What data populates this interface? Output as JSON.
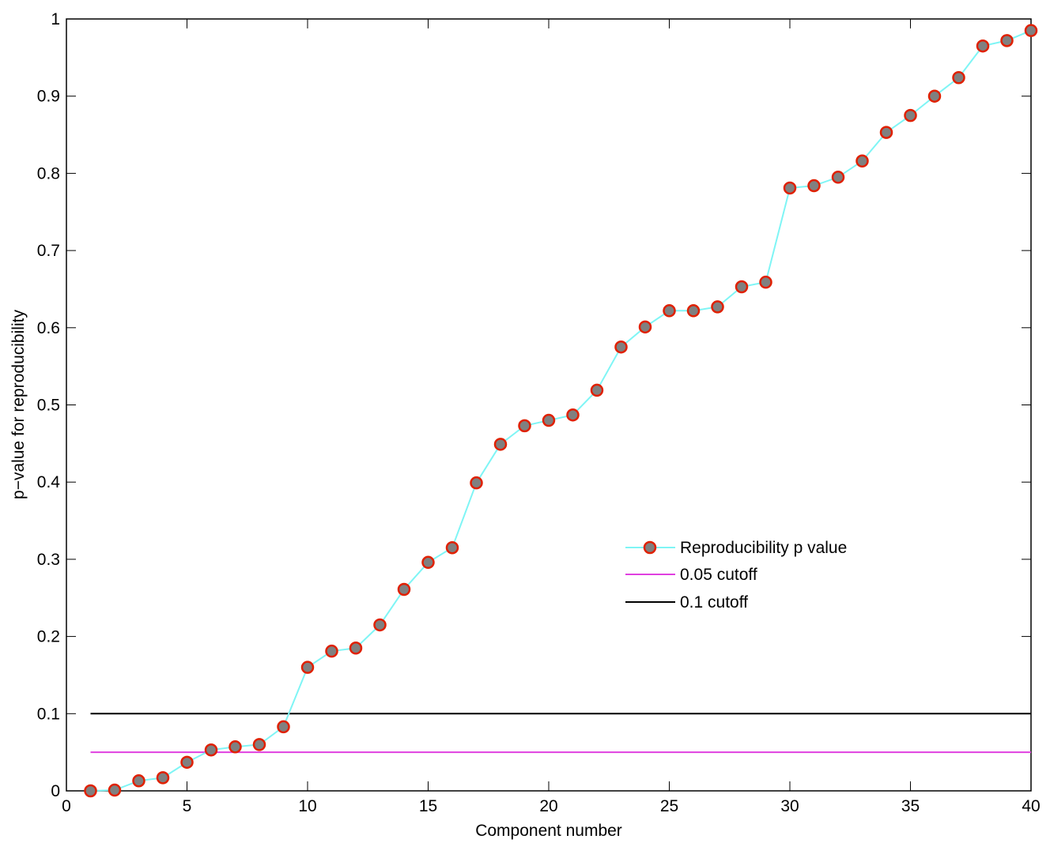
{
  "chart_data": {
    "type": "line",
    "title": "",
    "xlabel": "Component number",
    "ylabel": "p−value for reproducibility",
    "xlim": [
      0,
      40
    ],
    "ylim": [
      0,
      1
    ],
    "xticks": [
      0,
      5,
      10,
      15,
      20,
      25,
      30,
      35,
      40
    ],
    "yticks": [
      0,
      0.1,
      0.2,
      0.3,
      0.4,
      0.5,
      0.6,
      0.7,
      0.8,
      0.9,
      1
    ],
    "ytick_labels": [
      "0",
      "0.1",
      "0.2",
      "0.3",
      "0.4",
      "0.5",
      "0.6",
      "0.7",
      "0.8",
      "0.9",
      "1"
    ],
    "grid": false,
    "legend_position": "center-right",
    "series": [
      {
        "name": "Reproducibility p value",
        "style": "line-with-markers",
        "line_color": "#7ff5f5",
        "marker_face": "#808080",
        "marker_edge": "#e02000",
        "x": [
          1,
          2,
          3,
          4,
          5,
          6,
          7,
          8,
          9,
          10,
          11,
          12,
          13,
          14,
          15,
          16,
          17,
          18,
          19,
          20,
          21,
          22,
          23,
          24,
          25,
          26,
          27,
          28,
          29,
          30,
          31,
          32,
          33,
          34,
          35,
          36,
          37,
          38,
          39,
          40
        ],
        "values": [
          0.0,
          0.001,
          0.013,
          0.017,
          0.037,
          0.053,
          0.057,
          0.06,
          0.083,
          0.16,
          0.181,
          0.185,
          0.215,
          0.261,
          0.296,
          0.315,
          0.399,
          0.449,
          0.473,
          0.48,
          0.487,
          0.519,
          0.575,
          0.601,
          0.622,
          0.622,
          0.627,
          0.653,
          0.659,
          0.781,
          0.784,
          0.795,
          0.816,
          0.853,
          0.875,
          0.9,
          0.924,
          0.965,
          0.972,
          0.985
        ]
      },
      {
        "name": "0.05 cutoff",
        "style": "line",
        "line_color": "#e040e0",
        "x": [
          1,
          40
        ],
        "values": [
          0.05,
          0.05
        ]
      },
      {
        "name": "0.1 cutoff",
        "style": "line",
        "line_color": "#000000",
        "x": [
          1,
          40
        ],
        "values": [
          0.1,
          0.1
        ]
      }
    ]
  },
  "legend": {
    "items": [
      {
        "label": "Reproducibility p value"
      },
      {
        "label": "0.05 cutoff"
      },
      {
        "label": "0.1 cutoff"
      }
    ]
  }
}
